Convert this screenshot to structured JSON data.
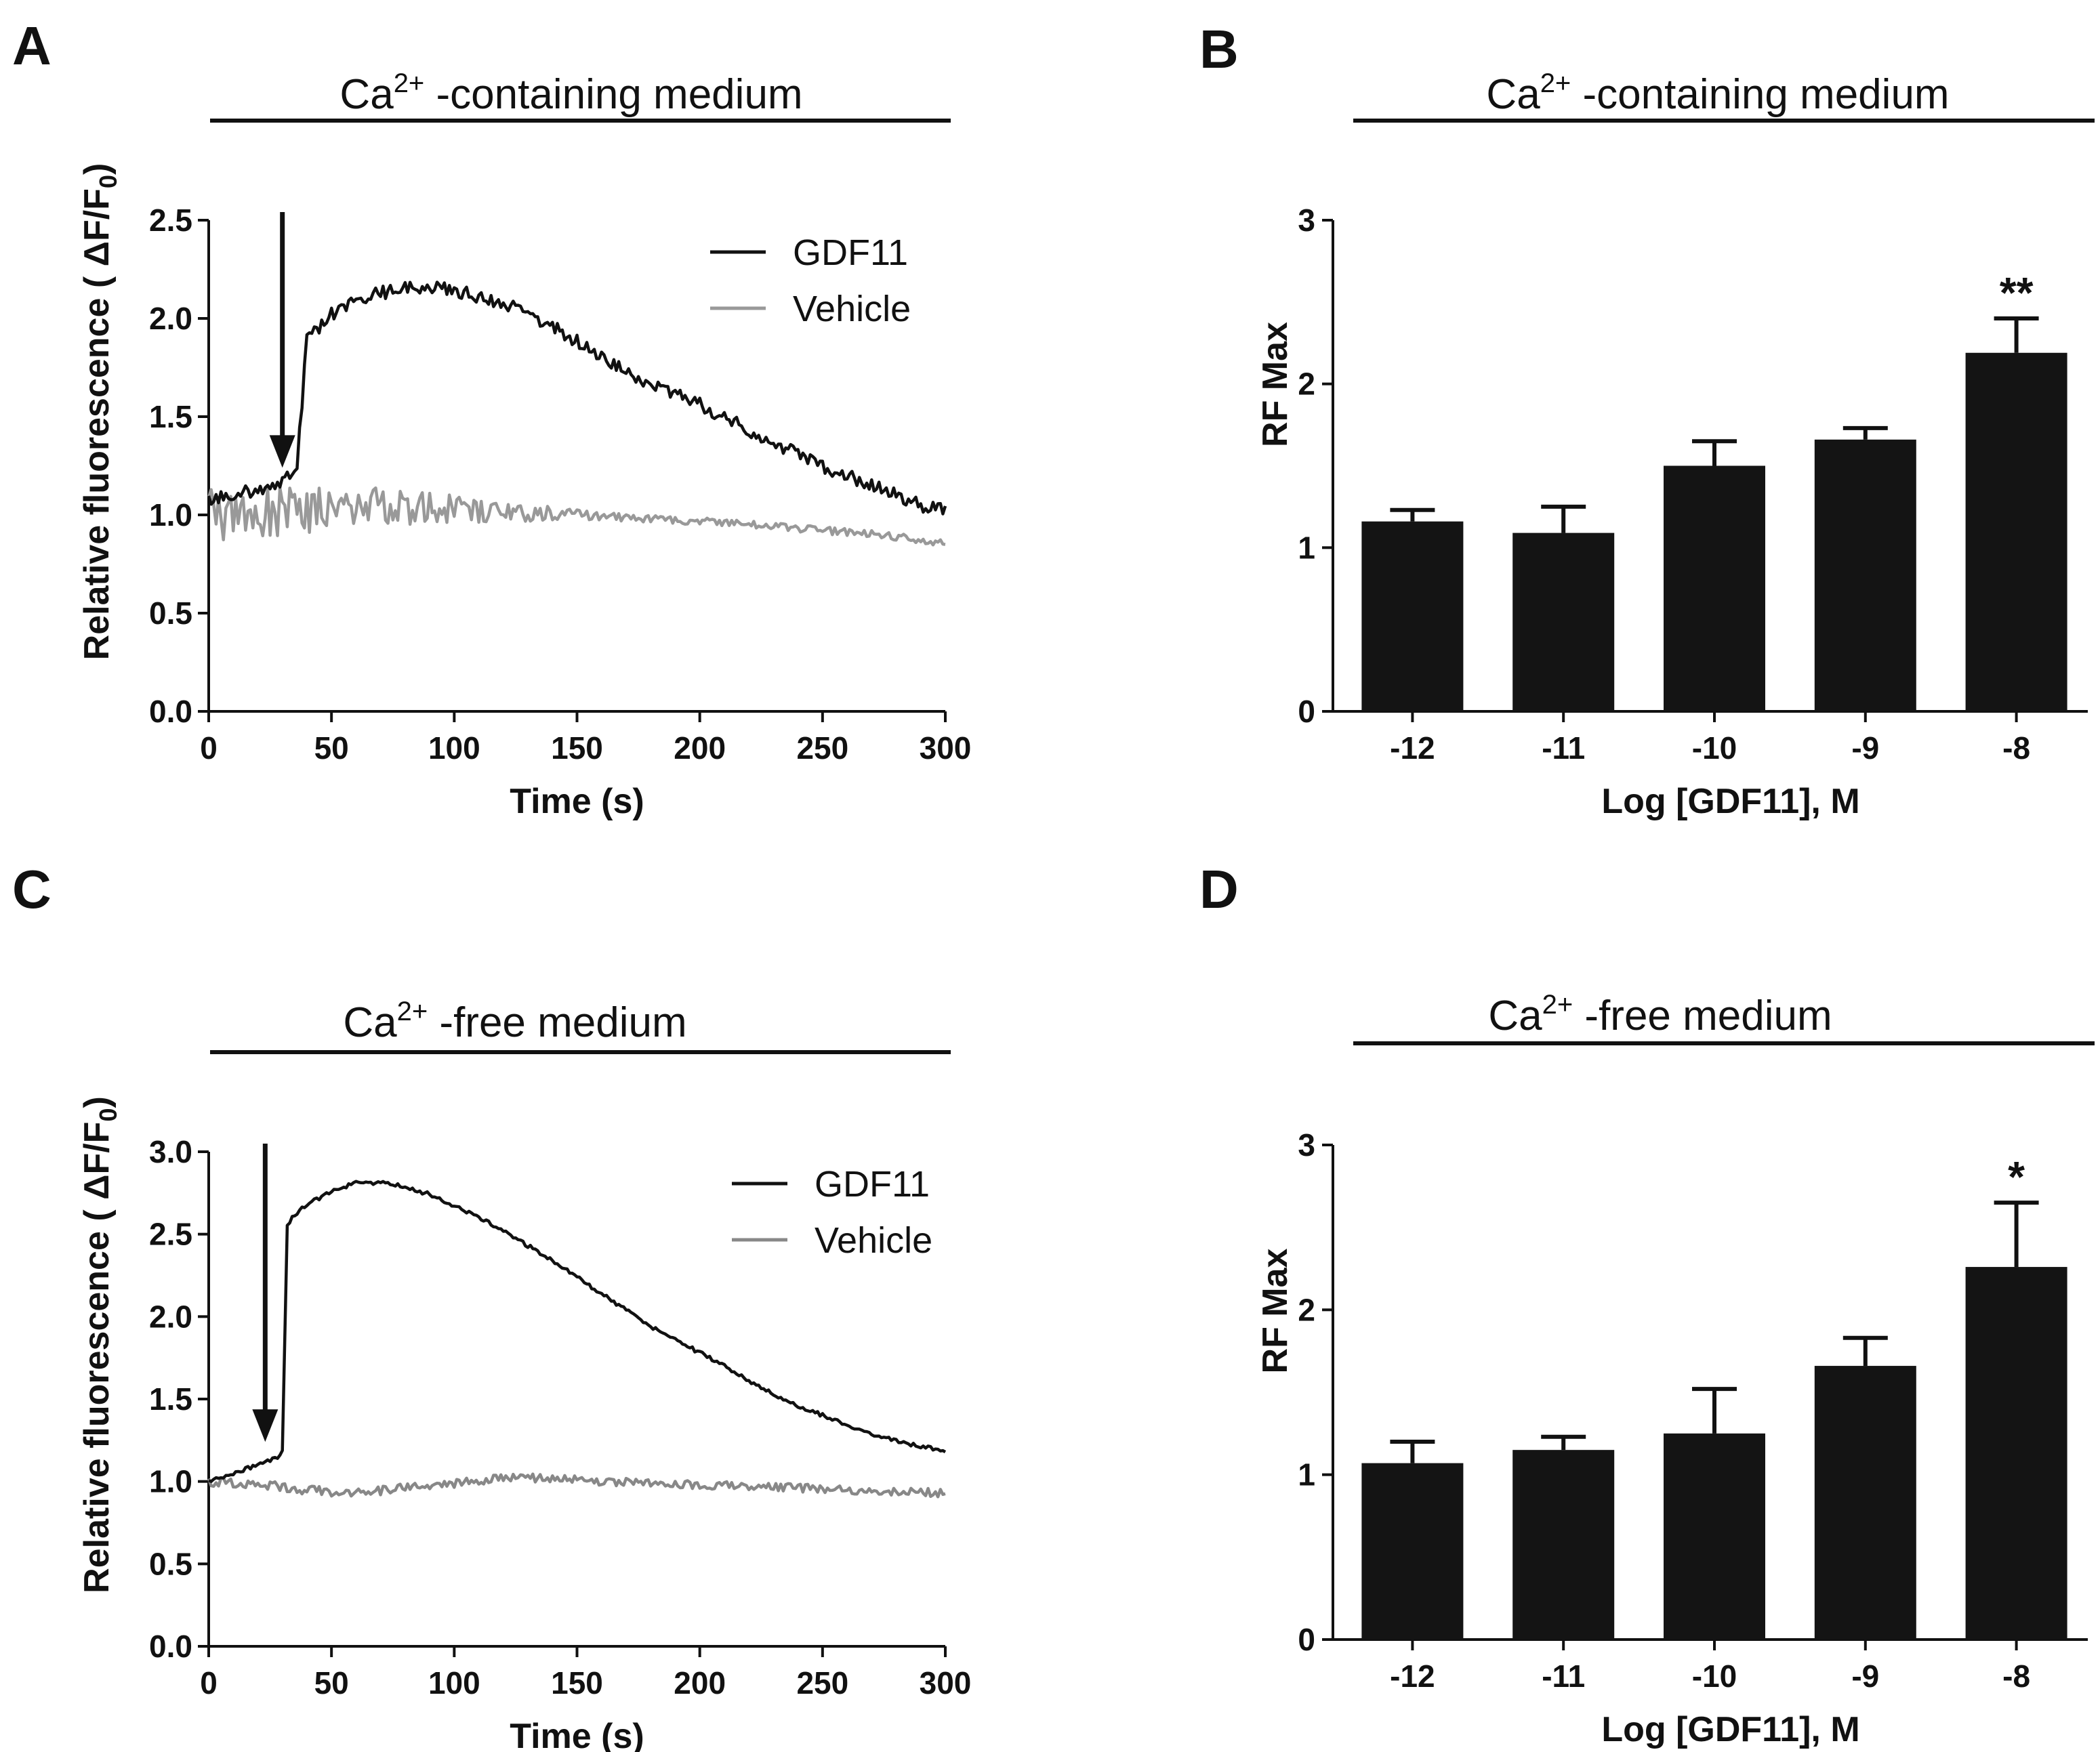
{
  "colors": {
    "gdf11": "#111111",
    "vehicle_a": "#999999",
    "vehicle_c": "#888888",
    "bar": "#141414"
  },
  "chart_data": [
    {
      "id": "A",
      "type": "line",
      "condition_prefix": "Ca",
      "condition_sup": "2+",
      "condition_suffix": " -containing medium",
      "xlabel": "Time (s)",
      "ylabel": "Relative fluorescence ( ΔF/F0)",
      "ylabel_main": "Relative fluorescence ( ΔF/F",
      "ylabel_sub": "0",
      "ylabel_end": ")",
      "xlim": [
        0,
        300
      ],
      "ylim": [
        0,
        2.5
      ],
      "xticks": [
        "0",
        "50",
        "100",
        "150",
        "200",
        "250",
        "300"
      ],
      "yticks": [
        "0.0",
        "0.5",
        "1.0",
        "1.5",
        "2.0",
        "2.5"
      ],
      "arrow_at_s": 30,
      "series": [
        {
          "name": "GDF11",
          "x": [
            0,
            10,
            20,
            30,
            36,
            40,
            50,
            60,
            70,
            80,
            90,
            100,
            110,
            120,
            130,
            140,
            150,
            160,
            170,
            180,
            190,
            200,
            210,
            220,
            230,
            240,
            250,
            260,
            270,
            280,
            290,
            300
          ],
          "values": [
            1.08,
            1.1,
            1.13,
            1.18,
            1.25,
            1.9,
            2.02,
            2.09,
            2.13,
            2.16,
            2.16,
            2.14,
            2.11,
            2.08,
            2.03,
            1.96,
            1.88,
            1.8,
            1.73,
            1.67,
            1.61,
            1.56,
            1.5,
            1.43,
            1.37,
            1.31,
            1.25,
            1.2,
            1.15,
            1.1,
            1.05,
            1.02
          ],
          "noise": 0.035
        },
        {
          "name": "Vehicle",
          "x": [
            0,
            30,
            60,
            90,
            120,
            150,
            180,
            210,
            240,
            270,
            300
          ],
          "values": [
            1.0,
            1.03,
            1.04,
            1.03,
            1.02,
            1.0,
            0.98,
            0.96,
            0.93,
            0.9,
            0.86
          ],
          "noise_start": 0.16,
          "noise_end": 0.02
        }
      ]
    },
    {
      "id": "B",
      "type": "bar",
      "condition_prefix": "Ca",
      "condition_sup": "2+",
      "condition_suffix": " -containing medium",
      "xlabel": "Log [GDF11], M",
      "ylabel": "RF Max",
      "categories": [
        "-12",
        "-11",
        "-10",
        "-9",
        "-8"
      ],
      "values": [
        1.16,
        1.09,
        1.5,
        1.66,
        2.19
      ],
      "errors": [
        0.07,
        0.16,
        0.15,
        0.07,
        0.21
      ],
      "significance": [
        "",
        "",
        "",
        "",
        "**"
      ],
      "ylim": [
        0,
        3
      ],
      "yticks": [
        "0",
        "1",
        "2",
        "3"
      ]
    },
    {
      "id": "C",
      "type": "line",
      "condition_prefix": "Ca",
      "condition_sup": "2+",
      "condition_suffix": " -free medium",
      "xlabel": "Time (s)",
      "ylabel": "Relative fluorescence ( ΔF/F0)",
      "ylabel_main": "Relative fluorescence ( ΔF/F",
      "ylabel_sub": "0",
      "ylabel_end": ")",
      "xlim": [
        0,
        300
      ],
      "ylim": [
        0,
        3.0
      ],
      "xticks": [
        "0",
        "50",
        "100",
        "150",
        "200",
        "250",
        "300"
      ],
      "yticks": [
        "0.0",
        "0.5",
        "1.0",
        "1.5",
        "2.0",
        "2.5",
        "3.0"
      ],
      "arrow_at_s": 23,
      "series": [
        {
          "name": "GDF11",
          "x": [
            0,
            10,
            20,
            28,
            30,
            32,
            35,
            40,
            50,
            60,
            70,
            80,
            90,
            100,
            110,
            120,
            130,
            140,
            150,
            160,
            170,
            180,
            190,
            200,
            210,
            220,
            230,
            240,
            250,
            260,
            270,
            280,
            290,
            300
          ],
          "values": [
            1.0,
            1.05,
            1.1,
            1.15,
            1.18,
            2.55,
            2.62,
            2.68,
            2.76,
            2.81,
            2.81,
            2.79,
            2.74,
            2.67,
            2.6,
            2.52,
            2.43,
            2.34,
            2.24,
            2.14,
            2.04,
            1.94,
            1.86,
            1.78,
            1.7,
            1.61,
            1.53,
            1.46,
            1.4,
            1.34,
            1.29,
            1.25,
            1.21,
            1.19
          ],
          "noise": 0.012
        },
        {
          "name": "Vehicle",
          "x": [
            0,
            20,
            40,
            60,
            80,
            100,
            120,
            140,
            160,
            180,
            200,
            220,
            240,
            260,
            280,
            300
          ],
          "values": [
            1.0,
            0.98,
            0.95,
            0.93,
            0.96,
            0.99,
            1.02,
            1.02,
            1.0,
            0.99,
            0.98,
            0.97,
            0.96,
            0.95,
            0.94,
            0.93
          ],
          "noise_start": 0.03,
          "noise_end": 0.025
        }
      ]
    },
    {
      "id": "D",
      "type": "bar",
      "condition_prefix": "Ca",
      "condition_sup": "2+",
      "condition_suffix": " -free medium",
      "xlabel": "Log [GDF11], M",
      "ylabel": "RF Max",
      "categories": [
        "-12",
        "-11",
        "-10",
        "-9",
        "-8"
      ],
      "values": [
        1.07,
        1.15,
        1.25,
        1.66,
        2.26
      ],
      "errors": [
        0.13,
        0.08,
        0.27,
        0.17,
        0.39
      ],
      "significance": [
        "",
        "",
        "",
        "",
        "*"
      ],
      "ylim": [
        0,
        3
      ],
      "yticks": [
        "0",
        "1",
        "2",
        "3"
      ]
    }
  ]
}
